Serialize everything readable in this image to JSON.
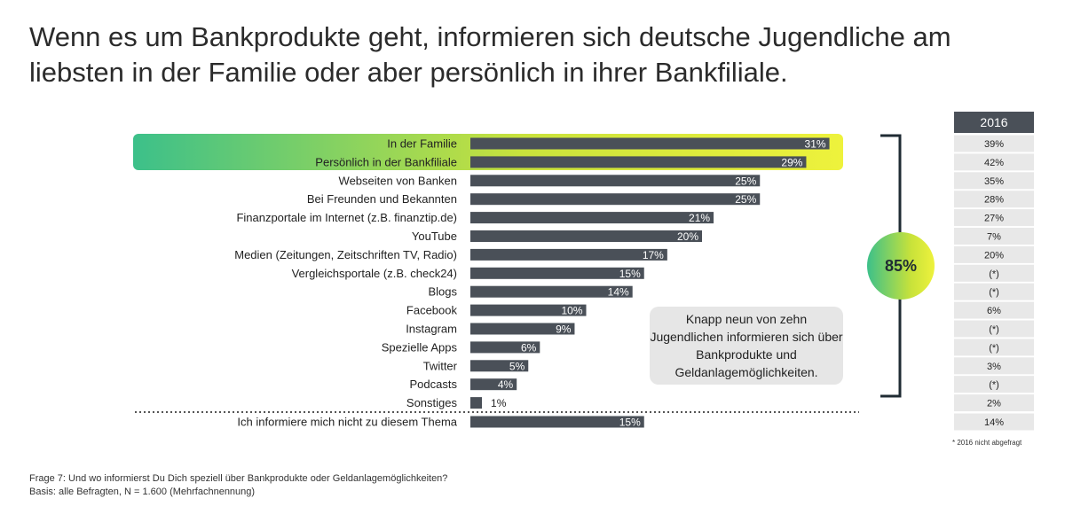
{
  "title": "Wenn es um Bankprodukte geht, informieren sich deutsche Jugendliche am liebsten in der Familie oder aber persönlich in ihrer Bankfiliale.",
  "chart_data": {
    "type": "bar",
    "orientation": "horizontal",
    "categories": [
      "In der Familie",
      "Persönlich in der Bankfiliale",
      "Webseiten von Banken",
      "Bei Freunden und Bekannten",
      "Finanzportale im Internet (z.B. finanztip.de)",
      "YouTube",
      "Medien (Zeitungen, Zeitschriften TV, Radio)",
      "Vergleichsportale (z.B. check24)",
      "Blogs",
      "Facebook",
      "Instagram",
      "Spezielle Apps",
      "Twitter",
      "Podcasts",
      "Sonstiges",
      "Ich informiere mich nicht zu diesem Thema"
    ],
    "values": [
      31,
      29,
      25,
      25,
      21,
      20,
      17,
      15,
      14,
      10,
      9,
      6,
      5,
      4,
      1,
      15
    ],
    "value_labels": [
      "31%",
      "29%",
      "25%",
      "25%",
      "21%",
      "20%",
      "17%",
      "15%",
      "14%",
      "10%",
      "9%",
      "6%",
      "5%",
      "4%",
      "1%",
      "15%"
    ],
    "xlim": [
      0,
      33
    ],
    "highlighted": [
      "In der Familie",
      "Persönlich in der Bankfiliale"
    ],
    "comparison_column": {
      "header": "2016",
      "values": [
        "39%",
        "42%",
        "35%",
        "28%",
        "27%",
        "7%",
        "20%",
        "(*)",
        "(*)",
        "6%",
        "(*)",
        "(*)",
        "3%",
        "(*)",
        "2%",
        "14%"
      ]
    },
    "bracket_total": "85%",
    "callout": "Knapp neun von zehn Jugendlichen informieren sich über Bankprodukte und Geldanlagemöglichkeiten.",
    "colors": {
      "bar": "#4a5058",
      "highlight_start": "#3cc08a",
      "highlight_end": "#eef23c",
      "header_bg": "#4a5058",
      "table_bg": "#e8e8e8",
      "bracket": "#1f2b33"
    }
  },
  "footnotes": {
    "question": "Frage 7: Und wo informierst Du Dich speziell über Bankprodukte oder Geldanlagemöglichkeiten?",
    "basis": "Basis: alle Befragten, N = 1.600 (Mehrfachnennung)",
    "side": "* 2016 nicht abgefragt"
  }
}
